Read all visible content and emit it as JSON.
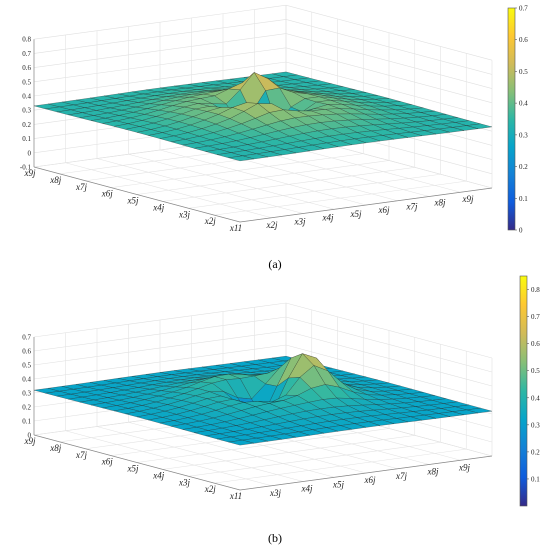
{
  "panels": [
    {
      "caption": "(a)",
      "chart_data": {
        "type": "surface",
        "title": "",
        "zlim": [
          -0.1,
          0.8
        ],
        "z_ticks": [
          "-0.1",
          "0",
          "0.1",
          "0.2",
          "0.3",
          "0.4",
          "0.5",
          "0.6",
          "0.7",
          "0.8"
        ],
        "x_ticks": [
          "x9j",
          "x8j",
          "x7j",
          "x6j",
          "x5j",
          "x4j",
          "x3j",
          "x2j",
          "x11"
        ],
        "y_ticks": [
          "x2j",
          "x3j",
          "x4j",
          "x5j",
          "x6j",
          "x7j",
          "x8j",
          "x9j"
        ],
        "colorbar": {
          "range": [
            0,
            0.7
          ],
          "ticks": [
            "0",
            "0.1",
            "0.2",
            "0.3",
            "0.4",
            "0.5",
            "0.6",
            "0.7"
          ],
          "colormap": "parula"
        },
        "grid": true,
        "surface": {
          "edge_value": 0.33,
          "mid_value": 0.5,
          "peak_value": 0.75,
          "min_value": 0.0
        }
      }
    },
    {
      "caption": "(b)",
      "chart_data": {
        "type": "surface",
        "title": "",
        "zlim": [
          0,
          0.7
        ],
        "z_ticks": [
          "0",
          "0.1",
          "0.2",
          "0.3",
          "0.4",
          "0.5",
          "0.6",
          "0.7"
        ],
        "x_ticks": [
          "x9j",
          "x8j",
          "x7j",
          "x6j",
          "x5j",
          "x4j",
          "x3j",
          "x2j",
          "x11"
        ],
        "y_ticks": [
          "x3j",
          "x4j",
          "x5j",
          "x6j",
          "x7j",
          "x8j",
          "x9j"
        ],
        "colorbar": {
          "range": [
            0,
            0.85
          ],
          "ticks": [
            "0.1",
            "0.2",
            "0.3",
            "0.4",
            "0.5",
            "0.6",
            "0.7",
            "0.8"
          ],
          "colormap": "parula"
        },
        "grid": true,
        "surface": {
          "edge_value": 0.32,
          "mid_value": 0.45,
          "peak_value": 0.7,
          "min_value": 0.0
        }
      }
    }
  ]
}
